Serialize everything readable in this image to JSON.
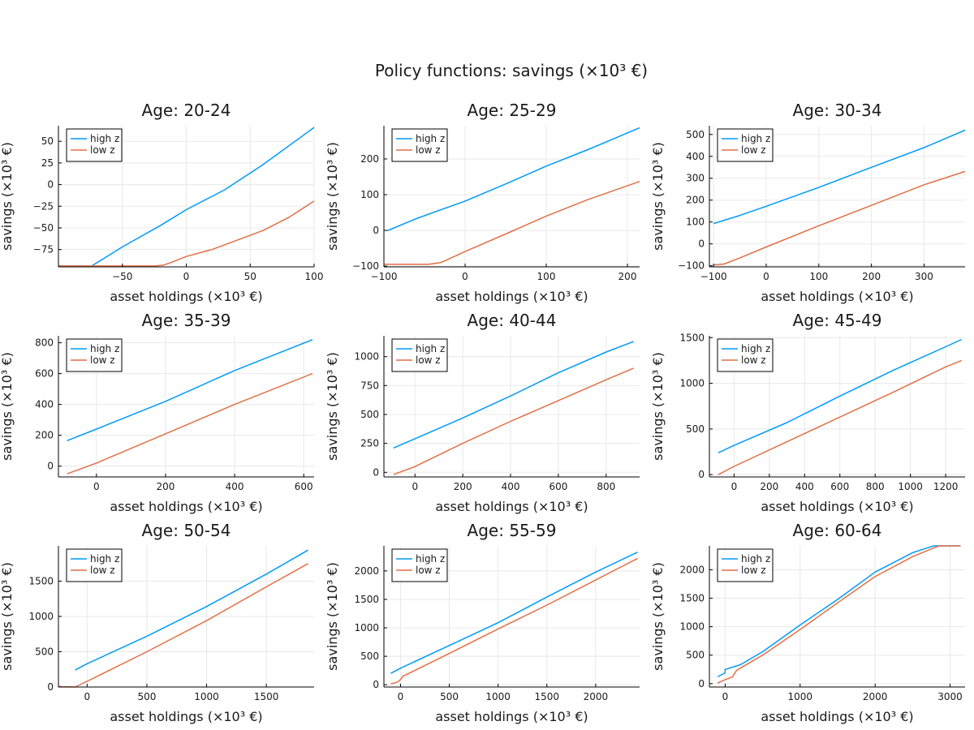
{
  "figure_title": "Policy functions: savings (×10³ €)",
  "colors": {
    "high": "#009AFA",
    "low": "#E26F46"
  },
  "chart_data": [
    {
      "type": "line",
      "title": "Age: 20-24",
      "xlabel": "asset holdings (×10³ €)",
      "ylabel": "savings (×10³ €)",
      "xlim": [
        -100,
        100
      ],
      "ylim": [
        -95,
        68
      ],
      "xticks": [
        -50,
        0,
        50,
        100
      ],
      "yticks": [
        -75,
        -50,
        -25,
        0,
        25,
        50
      ],
      "grid": true,
      "legend": "top-left",
      "series": [
        {
          "name": "high z",
          "x": [
            -100,
            -74,
            -50,
            -20,
            0,
            30,
            60,
            100
          ],
          "y": [
            -94,
            -94,
            -72,
            -47,
            -29,
            -6,
            23,
            66
          ]
        },
        {
          "name": "low z",
          "x": [
            -100,
            -40,
            -24,
            -18,
            -12,
            0,
            20,
            40,
            60,
            80,
            100
          ],
          "y": [
            -94,
            -94,
            -94,
            -93,
            -90,
            -83,
            -75,
            -64,
            -53,
            -38,
            -19
          ]
        }
      ]
    },
    {
      "type": "line",
      "title": "Age: 25-29",
      "xlabel": "asset holdings (×10³ €)",
      "ylabel": "savings (×10³ €)",
      "xlim": [
        -100,
        215
      ],
      "ylim": [
        -102,
        293
      ],
      "xticks": [
        -100,
        0,
        100,
        200
      ],
      "yticks": [
        -100,
        0,
        100,
        200
      ],
      "grid": true,
      "legend": "top-left",
      "series": [
        {
          "name": "high z",
          "x": [
            -96,
            -60,
            0,
            50,
            100,
            150,
            215
          ],
          "y": [
            -1,
            33,
            82,
            130,
            180,
            225,
            287
          ]
        },
        {
          "name": "low z",
          "x": [
            -100,
            -45,
            -30,
            -20,
            0,
            50,
            100,
            150,
            215
          ],
          "y": [
            -95,
            -95,
            -90,
            -80,
            -59,
            -10,
            40,
            85,
            137
          ]
        }
      ]
    },
    {
      "type": "line",
      "title": "Age: 30-34",
      "xlabel": "asset holdings (×10³ €)",
      "ylabel": "savings (×10³ €)",
      "xlim": [
        -108,
        378
      ],
      "ylim": [
        -105,
        540
      ],
      "xticks": [
        -100,
        0,
        100,
        200,
        300
      ],
      "yticks": [
        -100,
        0,
        100,
        200,
        300,
        400,
        500
      ],
      "grid": true,
      "legend": "top-left",
      "series": [
        {
          "name": "high z",
          "x": [
            -100,
            -50,
            0,
            100,
            200,
            300,
            378
          ],
          "y": [
            93,
            130,
            172,
            258,
            350,
            440,
            520
          ]
        },
        {
          "name": "low z",
          "x": [
            -100,
            -80,
            -50,
            0,
            100,
            200,
            300,
            378
          ],
          "y": [
            -96,
            -92,
            -64,
            -14,
            83,
            176,
            270,
            331
          ]
        }
      ]
    },
    {
      "type": "line",
      "title": "Age: 35-39",
      "xlabel": "asset holdings (×10³ €)",
      "ylabel": "savings (×10³ €)",
      "xlim": [
        -110,
        630
      ],
      "ylim": [
        -70,
        845
      ],
      "xticks": [
        0,
        200,
        400,
        600
      ],
      "yticks": [
        0,
        200,
        400,
        600,
        800
      ],
      "grid": true,
      "legend": "top-left",
      "series": [
        {
          "name": "high z",
          "x": [
            -85,
            0,
            200,
            400,
            625
          ],
          "y": [
            165,
            240,
            420,
            620,
            820
          ]
        },
        {
          "name": "low z",
          "x": [
            -85,
            0,
            200,
            400,
            625
          ],
          "y": [
            -50,
            20,
            210,
            400,
            600
          ]
        }
      ]
    },
    {
      "type": "line",
      "title": "Age: 40-44",
      "xlabel": "asset holdings (×10³ €)",
      "ylabel": "savings (×10³ €)",
      "xlim": [
        -130,
        940
      ],
      "ylim": [
        -40,
        1180
      ],
      "xticks": [
        0,
        200,
        400,
        600,
        800
      ],
      "yticks": [
        0,
        250,
        500,
        750,
        1000
      ],
      "grid": true,
      "legend": "top-left",
      "series": [
        {
          "name": "high z",
          "x": [
            -90,
            0,
            200,
            400,
            600,
            800,
            915
          ],
          "y": [
            210,
            290,
            470,
            660,
            860,
            1040,
            1130
          ]
        },
        {
          "name": "low z",
          "x": [
            -90,
            0,
            200,
            400,
            600,
            800,
            915
          ],
          "y": [
            -20,
            50,
            250,
            440,
            620,
            800,
            900
          ]
        }
      ]
    },
    {
      "type": "line",
      "title": "Age: 45-49",
      "xlabel": "asset holdings (×10³ €)",
      "ylabel": "savings (×10³ €)",
      "xlim": [
        -140,
        1310
      ],
      "ylim": [
        -25,
        1520
      ],
      "xticks": [
        0,
        200,
        400,
        600,
        800,
        1000,
        1200
      ],
      "yticks": [
        0,
        500,
        1000,
        1500
      ],
      "grid": true,
      "legend": "top-left",
      "series": [
        {
          "name": "high z",
          "x": [
            -90,
            0,
            300,
            600,
            900,
            1200,
            1290
          ],
          "y": [
            240,
            320,
            570,
            860,
            1140,
            1400,
            1480
          ]
        },
        {
          "name": "low z",
          "x": [
            -90,
            0,
            300,
            600,
            900,
            1200,
            1290
          ],
          "y": [
            0,
            90,
            360,
            630,
            900,
            1180,
            1250
          ]
        }
      ]
    },
    {
      "type": "line",
      "title": "Age: 50-54",
      "xlabel": "asset holdings (×10³ €)",
      "ylabel": "savings (×10³ €)",
      "xlim": [
        -240,
        1900
      ],
      "ylim": [
        0,
        2000
      ],
      "xticks": [
        0,
        500,
        1000,
        1500
      ],
      "yticks": [
        0,
        500,
        1000,
        1500
      ],
      "grid": true,
      "legend": "top-left",
      "series": [
        {
          "name": "high z",
          "x": [
            -100,
            0,
            500,
            1000,
            1500,
            1850
          ],
          "y": [
            240,
            330,
            720,
            1140,
            1600,
            1940
          ]
        },
        {
          "name": "low z",
          "x": [
            -240,
            -210,
            -100,
            0,
            500,
            1000,
            1500,
            1850
          ],
          "y": [
            10,
            5,
            0,
            80,
            500,
            940,
            1420,
            1750
          ]
        }
      ]
    },
    {
      "type": "line",
      "title": "Age: 55-59",
      "xlabel": "asset holdings (×10³ €)",
      "ylabel": "savings (×10³ €)",
      "xlim": [
        -170,
        2450
      ],
      "ylim": [
        -40,
        2440
      ],
      "xticks": [
        0,
        500,
        1000,
        1500,
        2000
      ],
      "yticks": [
        0,
        500,
        1000,
        1500,
        2000
      ],
      "grid": true,
      "legend": "top-left",
      "series": [
        {
          "name": "high z",
          "x": [
            -100,
            0,
            500,
            1000,
            1500,
            2000,
            2430
          ],
          "y": [
            200,
            290,
            690,
            1090,
            1540,
            1980,
            2330
          ]
        },
        {
          "name": "low z",
          "x": [
            -100,
            -60,
            -30,
            0,
            30,
            50,
            500,
            1000,
            1500,
            2000,
            2430
          ],
          "y": [
            20,
            30,
            50,
            90,
            160,
            170,
            550,
            980,
            1400,
            1840,
            2220
          ]
        }
      ]
    },
    {
      "type": "line",
      "title": "Age: 60-64",
      "xlabel": "asset holdings (×10³ €)",
      "ylabel": "savings (×10³ €)",
      "xlim": [
        -210,
        3200
      ],
      "ylim": [
        -60,
        2420
      ],
      "xticks": [
        0,
        1000,
        2000,
        3000
      ],
      "yticks": [
        0,
        500,
        1000,
        1500,
        2000
      ],
      "grid": true,
      "legend": "top-left",
      "series": [
        {
          "name": "high z",
          "x": [
            -100,
            0,
            0,
            200,
            500,
            1000,
            1500,
            2000,
            2500,
            2780,
            3140
          ],
          "y": [
            120,
            190,
            250,
            330,
            560,
            1030,
            1480,
            1960,
            2300,
            2420,
            2420
          ]
        },
        {
          "name": "low z",
          "x": [
            -100,
            0,
            100,
            150,
            200,
            500,
            1000,
            1500,
            2000,
            2500,
            2850,
            3140
          ],
          "y": [
            10,
            70,
            120,
            230,
            270,
            500,
            950,
            1420,
            1880,
            2230,
            2420,
            2420
          ]
        }
      ]
    }
  ]
}
